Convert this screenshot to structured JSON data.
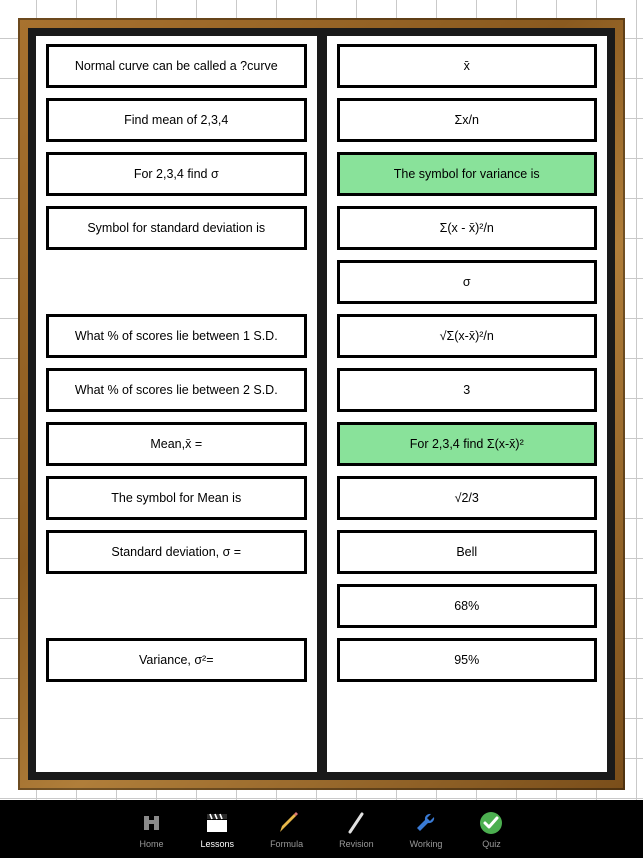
{
  "colors": {
    "grid_line": "#c9c9c9",
    "grid_bg": "#ffffff",
    "wood_frame": "#8a5a1f",
    "board_bg": "#1a1a1a",
    "card_bg": "#ffffff",
    "card_border": "#000000",
    "highlight_bg": "#89e29a",
    "bottombar_bg": "#000000",
    "tab_inactive": "#9a9a9a",
    "tab_active": "#ffffff"
  },
  "left_column": [
    {
      "text": "Normal curve can be called a ?curve",
      "highlight": false
    },
    {
      "text": "Find mean of 2,3,4",
      "highlight": false
    },
    {
      "text": "For 2,3,4 find σ",
      "highlight": false
    },
    {
      "text": "Symbol for standard deviation is",
      "highlight": false
    },
    {
      "gap": true
    },
    {
      "text": "What % of scores lie between 1 S.D.",
      "highlight": false
    },
    {
      "text": "What % of scores lie between 2 S.D.",
      "highlight": false
    },
    {
      "text": "Mean,x̄ =",
      "highlight": false
    },
    {
      "text": "The symbol for Mean is",
      "highlight": false
    },
    {
      "text": "Standard deviation, σ =",
      "highlight": false
    },
    {
      "gap": true
    },
    {
      "text": "Variance, σ²=",
      "highlight": false
    }
  ],
  "right_column": [
    {
      "text": "x̄",
      "highlight": false
    },
    {
      "text": "Σx/n",
      "highlight": false
    },
    {
      "text": "The symbol for variance is",
      "highlight": true
    },
    {
      "text": "Σ(x - x̄)²/n",
      "highlight": false
    },
    {
      "text": "σ",
      "highlight": false
    },
    {
      "text": "√Σ(x-x̄)²/n",
      "highlight": false
    },
    {
      "text": "3",
      "highlight": false
    },
    {
      "text": "For 2,3,4 find Σ(x-x̄)²",
      "highlight": true
    },
    {
      "text": "√2/3",
      "highlight": false
    },
    {
      "text": "Bell",
      "highlight": false
    },
    {
      "text": "68%",
      "highlight": false
    },
    {
      "text": "95%",
      "highlight": false
    }
  ],
  "tabs": [
    {
      "id": "home",
      "label": "Home",
      "active": false,
      "icon": "home"
    },
    {
      "id": "lessons",
      "label": "Lessons",
      "active": true,
      "icon": "clapper"
    },
    {
      "id": "formula",
      "label": "Formula",
      "active": false,
      "icon": "pencil"
    },
    {
      "id": "revision",
      "label": "Revision",
      "active": false,
      "icon": "slash"
    },
    {
      "id": "working",
      "label": "Working",
      "active": false,
      "icon": "wrench"
    },
    {
      "id": "quiz",
      "label": "Quiz",
      "active": false,
      "icon": "check"
    }
  ]
}
